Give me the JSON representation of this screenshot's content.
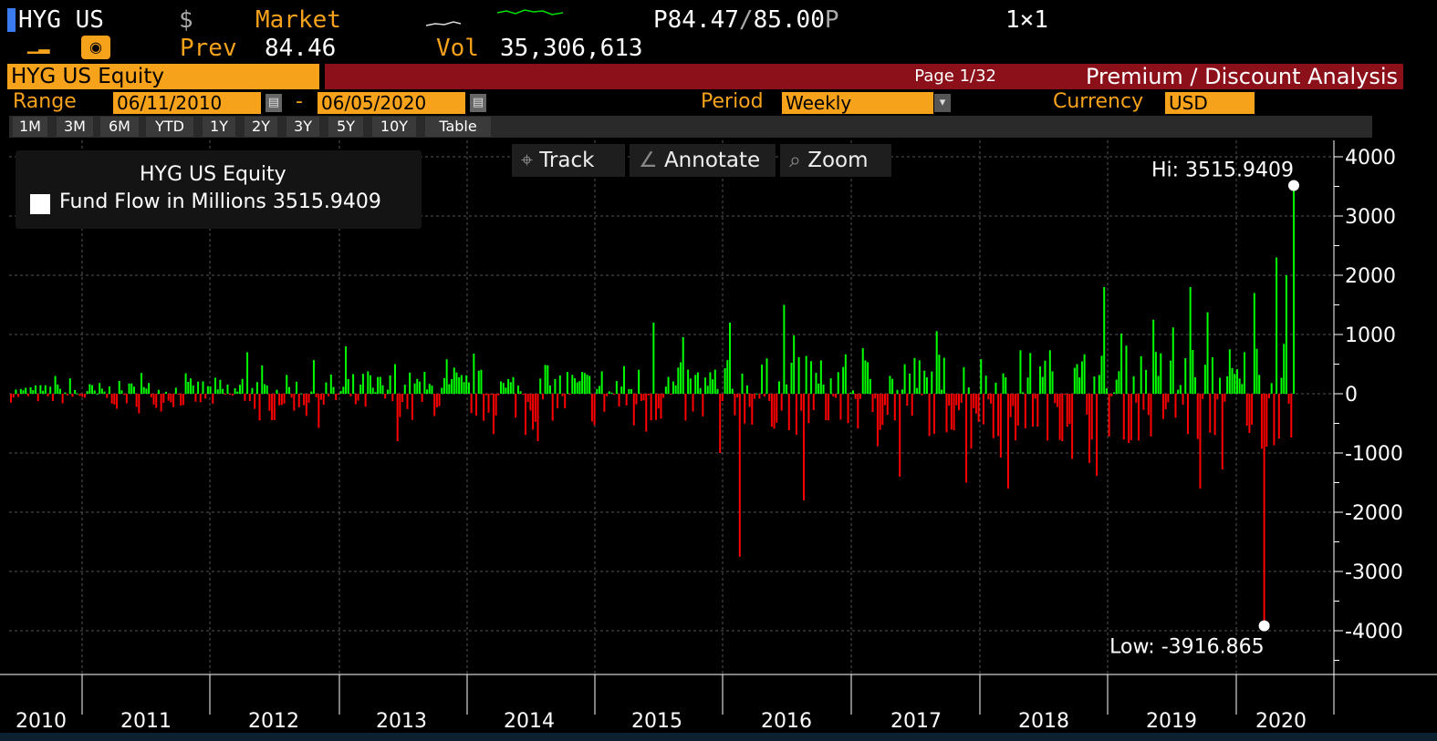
{
  "quote": {
    "ticker": "HYG US",
    "currency_symbol": "$",
    "market_label": "Market",
    "price": "P84.47",
    "price_sep": "/",
    "ask": "85.00",
    "ask_suffix": "P",
    "size": "1×1",
    "prev_label": "Prev",
    "prev_value": "84.46",
    "vol_label": "Vol",
    "vol_value": "35,306,613"
  },
  "titlebar": {
    "security": "HYG US Equity",
    "page": "Page 1/32",
    "function_title": "Premium / Discount Analysis"
  },
  "controls": {
    "range_label": "Range",
    "start_date": "06/11/2010",
    "range_sep": "-",
    "end_date": "06/05/2020",
    "period_label": "Period",
    "period_value": "Weekly",
    "currency_label": "Currency",
    "currency_value": "USD",
    "buttons": [
      "1M",
      "3M",
      "6M",
      "YTD",
      "1Y",
      "2Y",
      "3Y",
      "5Y",
      "10Y",
      "Table"
    ]
  },
  "tools": {
    "track": "Track",
    "annotate": "Annotate",
    "zoom": "Zoom"
  },
  "legend": {
    "security": "HYG US Equity",
    "series_label": "Fund Flow in Millions",
    "last_value": "3515.9409"
  },
  "colors": {
    "up": "#00ff00",
    "down": "#ff0000",
    "accent": "#f7a21b",
    "title_bar": "#8b1019"
  },
  "chart_data": {
    "type": "bar",
    "series_name": "Fund Flow in Millions",
    "frequency": "weekly",
    "x_start": "06/11/2010",
    "x_end": "06/05/2020",
    "x_ticks": [
      "2010",
      "2011",
      "2012",
      "2013",
      "2014",
      "2015",
      "2016",
      "2017",
      "2018",
      "2019",
      "2020"
    ],
    "y_ticks": [
      4000,
      3000,
      2000,
      1000,
      0,
      -1000,
      -2000,
      -3000,
      -4000
    ],
    "ylim": [
      -4500,
      4100
    ],
    "high": {
      "label": "Hi: 3515.9409",
      "value": 3515.9409
    },
    "low": {
      "label": "Low: -3916.865",
      "value": -3916.865
    },
    "key_bars": [
      {
        "date": "2010-10",
        "value": 300
      },
      {
        "date": "2011-06",
        "value": 350
      },
      {
        "date": "2011-08",
        "value": -300
      },
      {
        "date": "2012-04",
        "value": 700
      },
      {
        "date": "2012-05",
        "value": -450
      },
      {
        "date": "2013-01",
        "value": 800
      },
      {
        "date": "2013-06",
        "value": -800
      },
      {
        "date": "2014-07",
        "value": -800
      },
      {
        "date": "2015-06",
        "value": 1200
      },
      {
        "date": "2015-12",
        "value": -1000
      },
      {
        "date": "2016-01",
        "value": 1200
      },
      {
        "date": "2016-02",
        "value": -2750
      },
      {
        "date": "2016-06",
        "value": 1500
      },
      {
        "date": "2016-08",
        "value": -1800
      },
      {
        "date": "2017-05",
        "value": -1400
      },
      {
        "date": "2017-11",
        "value": -1500
      },
      {
        "date": "2018-03",
        "value": -1600
      },
      {
        "date": "2018-12",
        "value": 1800
      },
      {
        "date": "2019-08",
        "value": 1800
      },
      {
        "date": "2019-09",
        "value": -1600
      },
      {
        "date": "2020-02",
        "value": 1700
      },
      {
        "date": "2020-03",
        "value": -3916.865
      },
      {
        "date": "2020-04",
        "value": 2300
      },
      {
        "date": "2020-05",
        "value": 2000
      },
      {
        "date": "2020-06",
        "value": 3515.9409
      }
    ],
    "grid": true,
    "legend_position": "top-left"
  }
}
